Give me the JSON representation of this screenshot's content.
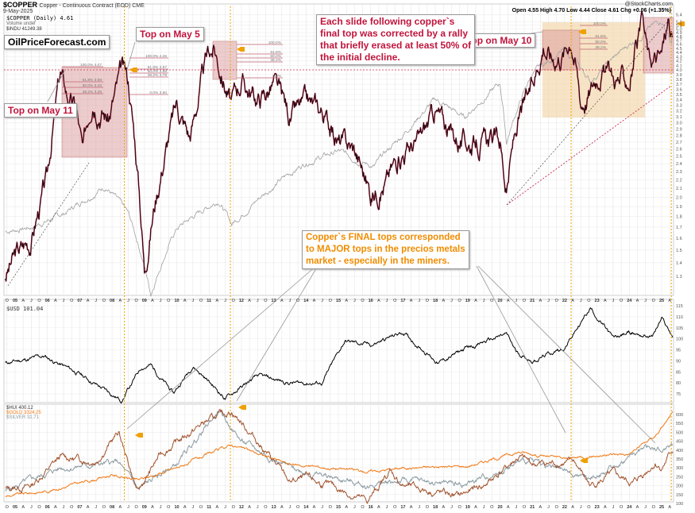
{
  "header": {
    "symbol": "$COPPER",
    "name": "Copper - Continuous Contract (EOD) CME",
    "date": "9-May-2025",
    "source": "@StockCharts.com",
    "ohlc": "Open 4.55  High 4.70  Low 4.44  Close 4.61  Chg +0.06 (+1.35%)"
  },
  "legends": {
    "copper": "$COPPER (Daily) 4.61",
    "volume": "Volume undef",
    "indu": "$INDU 41249.38",
    "usd": "$USD 101.04",
    "hui": "$HUI 400.12",
    "gold": "$GOLD 3324.25",
    "silver": "$SILVER 32.71"
  },
  "annotations": {
    "site": "OilPriceForecast.com",
    "top_may5": "Top on May 5",
    "top_may11": "Top on May 11",
    "top_may10": "Top on May 10",
    "slide_note": [
      "Each slide following copper`s",
      "final top was corrected by a rally",
      "that briefly erased at least 50% of",
      "the initial decline."
    ],
    "final_tops_note": [
      "Copper`s FINAL tops corresponded",
      "to MAJOR tops in the precios metals",
      "market - especially in the miners."
    ],
    "fib_2008": [
      "100.0% 4.26",
      "61.8% 3.97",
      "50.0% 3.88",
      "38.2% 3.79",
      "0.0% 3.50"
    ],
    "fib_2006": [
      "100.0% 4.07",
      "61.8% 3.58",
      "50.0% 3.43",
      "38.2% 3.28"
    ],
    "fib_2011": [
      "100.0%",
      "61.8%",
      "50.0%",
      "38.2%",
      "0.0%"
    ],
    "fib_2022": [
      "100.0%",
      "61.8%",
      "50.0%",
      "38.2%"
    ]
  },
  "colors": {
    "copper": "#111111",
    "copper_down": "#c0143c",
    "indu": "#a0a0a0",
    "usd": "#000000",
    "hui": "#a0522d",
    "gold": "#f07814",
    "silver": "#8a9aa0",
    "marker": "#f0a000",
    "fib": "#c06070"
  },
  "chart_data": [
    {
      "type": "line",
      "title": "$COPPER (Daily)",
      "scale": "log",
      "ylim": [
        1.2,
        5.4
      ],
      "y_ticks": [
        "1.3",
        "1.4",
        "1.5",
        "1.6",
        "1.7",
        "1.8",
        "1.9",
        "2.0",
        "2.1",
        "2.2",
        "2.3",
        "2.4",
        "2.5",
        "2.6",
        "2.7",
        "2.8",
        "2.9",
        "3.0",
        "3.1",
        "3.2",
        "3.3",
        "3.4",
        "3.5",
        "3.6",
        "3.7",
        "3.8",
        "3.9",
        "4.0",
        "4.1",
        "4.2",
        "4.3",
        "4.4",
        "4.5",
        "4.6",
        "4.7",
        "4.8",
        "4.9",
        "5.0",
        "5.1",
        "5.2",
        "5.4"
      ],
      "grid": true,
      "series": [
        {
          "name": "$COPPER",
          "x": [
            2004.7,
            2005.0,
            2005.5,
            2006.0,
            2006.4,
            2006.6,
            2006.9,
            2007.1,
            2007.4,
            2007.9,
            2008.3,
            2008.5,
            2008.9,
            2009.0,
            2009.5,
            2010.0,
            2010.4,
            2010.5,
            2011.0,
            2011.15,
            2011.7,
            2012.0,
            2012.5,
            2013.0,
            2013.5,
            2014.0,
            2014.5,
            2015.0,
            2015.5,
            2016.0,
            2016.5,
            2017.0,
            2017.5,
            2018.0,
            2018.5,
            2019.0,
            2019.5,
            2020.0,
            2020.2,
            2020.5,
            2021.0,
            2021.35,
            2021.6,
            2022.0,
            2022.2,
            2022.5,
            2022.8,
            2023.1,
            2023.5,
            2024.0,
            2024.4,
            2024.6,
            2025.0,
            2025.2,
            2025.35
          ],
          "y": [
            1.3,
            1.45,
            1.6,
            2.2,
            3.9,
            3.5,
            3.2,
            2.5,
            3.6,
            3.1,
            3.95,
            3.7,
            1.8,
            1.35,
            2.3,
            3.3,
            2.8,
            3.0,
            4.4,
            4.5,
            3.3,
            3.8,
            3.4,
            3.7,
            3.1,
            3.3,
            3.2,
            2.7,
            2.6,
            2.05,
            2.2,
            2.6,
            2.7,
            3.2,
            2.8,
            2.7,
            2.7,
            2.7,
            2.05,
            2.9,
            3.6,
            4.7,
            4.3,
            4.5,
            4.9,
            3.4,
            3.6,
            4.1,
            3.8,
            3.8,
            5.0,
            4.2,
            4.3,
            5.2,
            4.61
          ]
        },
        {
          "name": "$INDU",
          "x": [
            2004.7,
            2005.5,
            2006.5,
            2007.8,
            2008.5,
            2009.2,
            2010.0,
            2011.3,
            2011.7,
            2013.0,
            2014.0,
            2015.0,
            2016.1,
            2017.0,
            2018.0,
            2018.9,
            2020.0,
            2020.2,
            2021.0,
            2022.0,
            2022.8,
            2024.0,
            2025.0,
            2025.3,
            2025.35
          ],
          "y": [
            10200,
            10500,
            11500,
            14000,
            11500,
            6600,
            10400,
            12700,
            10700,
            14000,
            16500,
            17800,
            16000,
            20000,
            25500,
            22500,
            28500,
            19000,
            30600,
            36000,
            29000,
            37500,
            44500,
            38000,
            41249.38
          ]
        }
      ]
    },
    {
      "type": "line",
      "title": "$USD",
      "ylim": [
        70,
        117
      ],
      "y_ticks": [
        "75",
        "80",
        "85",
        "90",
        "95",
        "100",
        "105",
        "110",
        "115"
      ],
      "series": [
        {
          "name": "$USD",
          "x": [
            2004.7,
            2005.9,
            2007.0,
            2008.3,
            2008.9,
            2009.2,
            2009.9,
            2010.5,
            2011.5,
            2012.5,
            2013.5,
            2014.5,
            2015.2,
            2016.0,
            2017.0,
            2018.1,
            2019.0,
            2020.2,
            2020.5,
            2021.0,
            2022.0,
            2022.8,
            2023.5,
            2024.0,
            2024.7,
            2025.0,
            2025.35
          ],
          "y": [
            89,
            92,
            84,
            72,
            87,
            88,
            75,
            88,
            73,
            83,
            80,
            80,
            99,
            97,
            103,
            89,
            96,
            102,
            94,
            90,
            96,
            114,
            100,
            103,
            101,
            109,
            101.04
          ]
        }
      ]
    },
    {
      "type": "line",
      "ylim": [
        90,
        630
      ],
      "y_ticks": [
        "100",
        "150",
        "200",
        "250",
        "300",
        "350",
        "400",
        "450",
        "500",
        "550",
        "600"
      ],
      "x_ticks": [
        "O",
        "05",
        "A",
        "J",
        "O",
        "06",
        "A",
        "J",
        "O",
        "07",
        "A",
        "J",
        "O",
        "08",
        "A",
        "J",
        "O",
        "09",
        "A",
        "J",
        "O",
        "10",
        "A",
        "J",
        "O",
        "11",
        "A",
        "J",
        "O",
        "12",
        "A",
        "J",
        "O",
        "13",
        "A",
        "J",
        "O",
        "14",
        "A",
        "J",
        "O",
        "15",
        "A",
        "J",
        "O",
        "16",
        "A",
        "J",
        "O",
        "17",
        "A",
        "J",
        "O",
        "18",
        "A",
        "J",
        "O",
        "19",
        "A",
        "J",
        "O",
        "20",
        "A",
        "J",
        "O",
        "21",
        "A",
        "J",
        "O",
        "22",
        "A",
        "J",
        "O",
        "23",
        "A",
        "J",
        "O",
        "24",
        "A",
        "J",
        "O",
        "25",
        "A"
      ],
      "series": [
        {
          "name": "$HUI",
          "x": [
            2004.7,
            2005.5,
            2006.4,
            2007.5,
            2008.2,
            2008.8,
            2009.5,
            2010.9,
            2011.7,
            2012.5,
            2013.5,
            2014.0,
            2015.0,
            2015.9,
            2016.6,
            2017.0,
            2018.7,
            2019.5,
            2020.6,
            2021.0,
            2022.3,
            2022.8,
            2023.5,
            2024.1,
            2024.8,
            2025.0,
            2025.35
          ],
          "y": [
            180,
            200,
            360,
            340,
            500,
            160,
            380,
            560,
            620,
            450,
            220,
            240,
            180,
            110,
            280,
            200,
            140,
            200,
            360,
            320,
            330,
            200,
            260,
            210,
            330,
            300,
            400.12
          ]
        },
        {
          "name": "$GOLD",
          "x": [
            2004.7,
            2006.0,
            2008.0,
            2008.8,
            2010.0,
            2011.7,
            2013.5,
            2015.9,
            2017.0,
            2019.0,
            2020.6,
            2022.0,
            2023.0,
            2024.0,
            2024.8,
            2025.35
          ],
          "y": [
            140,
            170,
            260,
            230,
            300,
            430,
            320,
            280,
            300,
            310,
            390,
            350,
            370,
            380,
            480,
            610
          ]
        },
        {
          "name": "$SILVER",
          "x": [
            2004.7,
            2006.4,
            2008.2,
            2008.8,
            2010.0,
            2011.3,
            2012.0,
            2013.5,
            2015.9,
            2017.0,
            2019.0,
            2020.6,
            2021.0,
            2022.7,
            2023.5,
            2024.5,
            2025.0,
            2025.35
          ],
          "y": [
            170,
            300,
            330,
            180,
            320,
            620,
            450,
            300,
            200,
            230,
            210,
            330,
            340,
            240,
            300,
            420,
            400,
            440
          ]
        }
      ]
    }
  ]
}
